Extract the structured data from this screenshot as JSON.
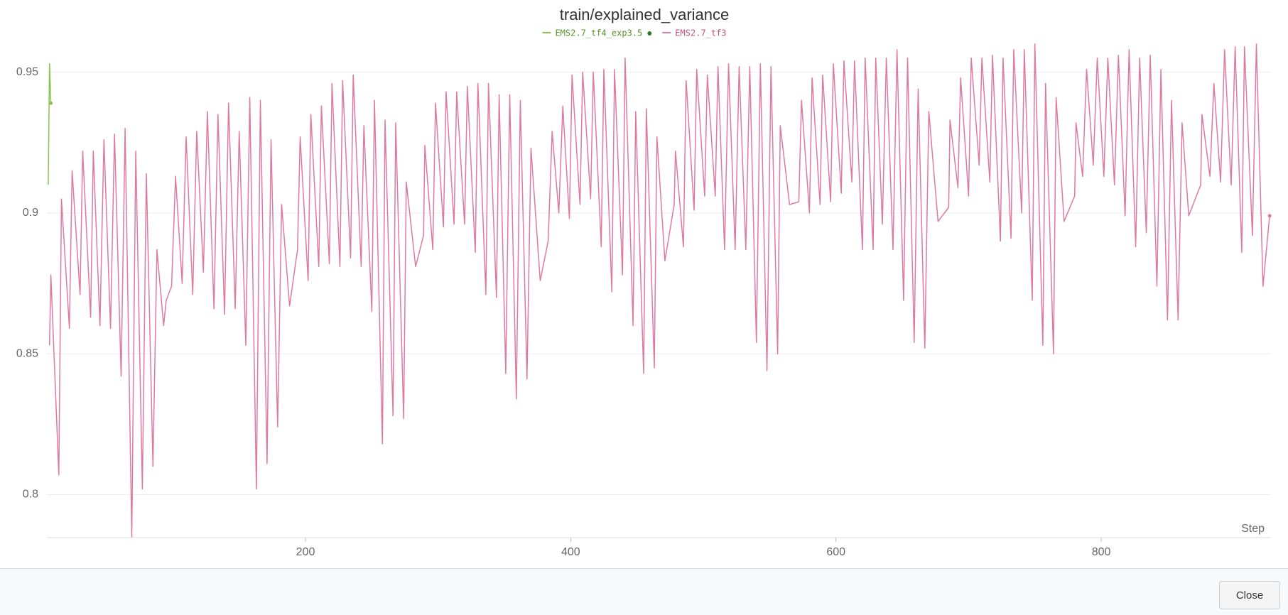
{
  "chart_data": {
    "type": "line",
    "title": "train/explained_variance",
    "x_label": "Step",
    "xlim": [
      5,
      928
    ],
    "ylim": [
      0.785,
      0.961
    ],
    "xticks": [
      200,
      400,
      600,
      800
    ],
    "yticks": [
      0.8,
      0.85,
      0.9,
      0.95
    ],
    "grid": true,
    "series": [
      {
        "name": "EMS2.7_tf4_exp3.5",
        "color": "#8cc152",
        "x": [
          6,
          7,
          8
        ],
        "values": [
          0.91,
          0.953,
          0.939
        ]
      },
      {
        "name": "EMS2.7_tf3",
        "color": "#dd7aa1",
        "x": [
          7,
          8,
          14,
          16,
          22,
          24,
          30,
          32,
          38,
          40,
          45,
          48,
          53,
          56,
          61,
          64,
          69,
          72,
          77,
          80,
          85,
          88,
          93,
          95,
          99,
          102,
          107,
          110,
          115,
          118,
          123,
          126,
          131,
          134,
          139,
          142,
          147,
          150,
          155,
          158,
          163,
          166,
          171,
          174,
          179,
          182,
          188,
          194,
          196,
          202,
          204,
          210,
          212,
          218,
          220,
          226,
          228,
          234,
          236,
          242,
          244,
          250,
          252,
          258,
          260,
          266,
          268,
          274,
          276,
          283,
          289,
          290,
          296,
          298,
          304,
          306,
          312,
          314,
          320,
          322,
          328,
          330,
          336,
          338,
          344,
          346,
          351,
          354,
          359,
          362,
          367,
          370,
          377,
          383,
          386,
          391,
          394,
          399,
          401,
          407,
          409,
          415,
          417,
          423,
          425,
          431,
          433,
          439,
          441,
          447,
          449,
          455,
          457,
          463,
          465,
          471,
          478,
          479,
          485,
          487,
          493,
          495,
          501,
          503,
          509,
          511,
          516,
          519,
          524,
          527,
          532,
          535,
          540,
          543,
          548,
          551,
          556,
          558,
          565,
          572,
          574,
          580,
          582,
          588,
          590,
          596,
          598,
          604,
          606,
          612,
          614,
          620,
          622,
          628,
          630,
          635,
          638,
          643,
          646,
          651,
          654,
          659,
          662,
          667,
          670,
          677,
          685,
          686,
          692,
          694,
          700,
          702,
          708,
          710,
          716,
          718,
          724,
          726,
          732,
          734,
          740,
          742,
          748,
          750,
          756,
          758,
          764,
          766,
          772,
          780,
          781,
          786,
          789,
          794,
          797,
          802,
          805,
          810,
          813,
          818,
          821,
          826,
          829,
          834,
          837,
          842,
          845,
          850,
          853,
          858,
          861,
          866,
          875,
          876,
          882,
          885,
          890,
          893,
          898,
          901,
          906,
          908,
          914,
          917,
          922,
          927
        ],
        "values": [
          0.853,
          0.878,
          0.807,
          0.905,
          0.859,
          0.915,
          0.871,
          0.922,
          0.863,
          0.922,
          0.86,
          0.926,
          0.859,
          0.928,
          0.842,
          0.93,
          0.785,
          0.922,
          0.802,
          0.914,
          0.81,
          0.887,
          0.86,
          0.869,
          0.874,
          0.913,
          0.875,
          0.927,
          0.871,
          0.929,
          0.879,
          0.936,
          0.866,
          0.935,
          0.864,
          0.939,
          0.866,
          0.929,
          0.853,
          0.941,
          0.802,
          0.94,
          0.811,
          0.926,
          0.824,
          0.903,
          0.867,
          0.887,
          0.927,
          0.876,
          0.935,
          0.881,
          0.938,
          0.882,
          0.946,
          0.881,
          0.947,
          0.884,
          0.949,
          0.881,
          0.931,
          0.865,
          0.94,
          0.818,
          0.933,
          0.828,
          0.932,
          0.827,
          0.911,
          0.881,
          0.892,
          0.924,
          0.887,
          0.939,
          0.895,
          0.943,
          0.896,
          0.943,
          0.896,
          0.945,
          0.886,
          0.946,
          0.871,
          0.946,
          0.87,
          0.942,
          0.843,
          0.942,
          0.834,
          0.94,
          0.841,
          0.923,
          0.876,
          0.89,
          0.929,
          0.9,
          0.938,
          0.898,
          0.949,
          0.903,
          0.95,
          0.905,
          0.95,
          0.888,
          0.951,
          0.872,
          0.951,
          0.878,
          0.955,
          0.86,
          0.936,
          0.843,
          0.937,
          0.845,
          0.927,
          0.883,
          0.903,
          0.922,
          0.888,
          0.947,
          0.901,
          0.951,
          0.906,
          0.949,
          0.906,
          0.952,
          0.887,
          0.953,
          0.887,
          0.952,
          0.887,
          0.952,
          0.854,
          0.953,
          0.844,
          0.952,
          0.85,
          0.931,
          0.903,
          0.904,
          0.94,
          0.9,
          0.948,
          0.903,
          0.949,
          0.904,
          0.953,
          0.907,
          0.954,
          0.911,
          0.954,
          0.887,
          0.955,
          0.887,
          0.955,
          0.896,
          0.955,
          0.887,
          0.958,
          0.869,
          0.955,
          0.854,
          0.944,
          0.852,
          0.936,
          0.897,
          0.902,
          0.933,
          0.909,
          0.948,
          0.906,
          0.955,
          0.917,
          0.955,
          0.911,
          0.956,
          0.89,
          0.955,
          0.891,
          0.958,
          0.9,
          0.958,
          0.869,
          0.96,
          0.853,
          0.946,
          0.85,
          0.941,
          0.897,
          0.906,
          0.932,
          0.913,
          0.951,
          0.917,
          0.955,
          0.913,
          0.955,
          0.91,
          0.956,
          0.899,
          0.958,
          0.888,
          0.955,
          0.893,
          0.956,
          0.874,
          0.951,
          0.862,
          0.94,
          0.862,
          0.932,
          0.899,
          0.91,
          0.935,
          0.913,
          0.946,
          0.911,
          0.958,
          0.91,
          0.959,
          0.886,
          0.959,
          0.892,
          0.96,
          0.874,
          0.899
        ]
      }
    ]
  },
  "footer": {
    "button": "Close"
  }
}
